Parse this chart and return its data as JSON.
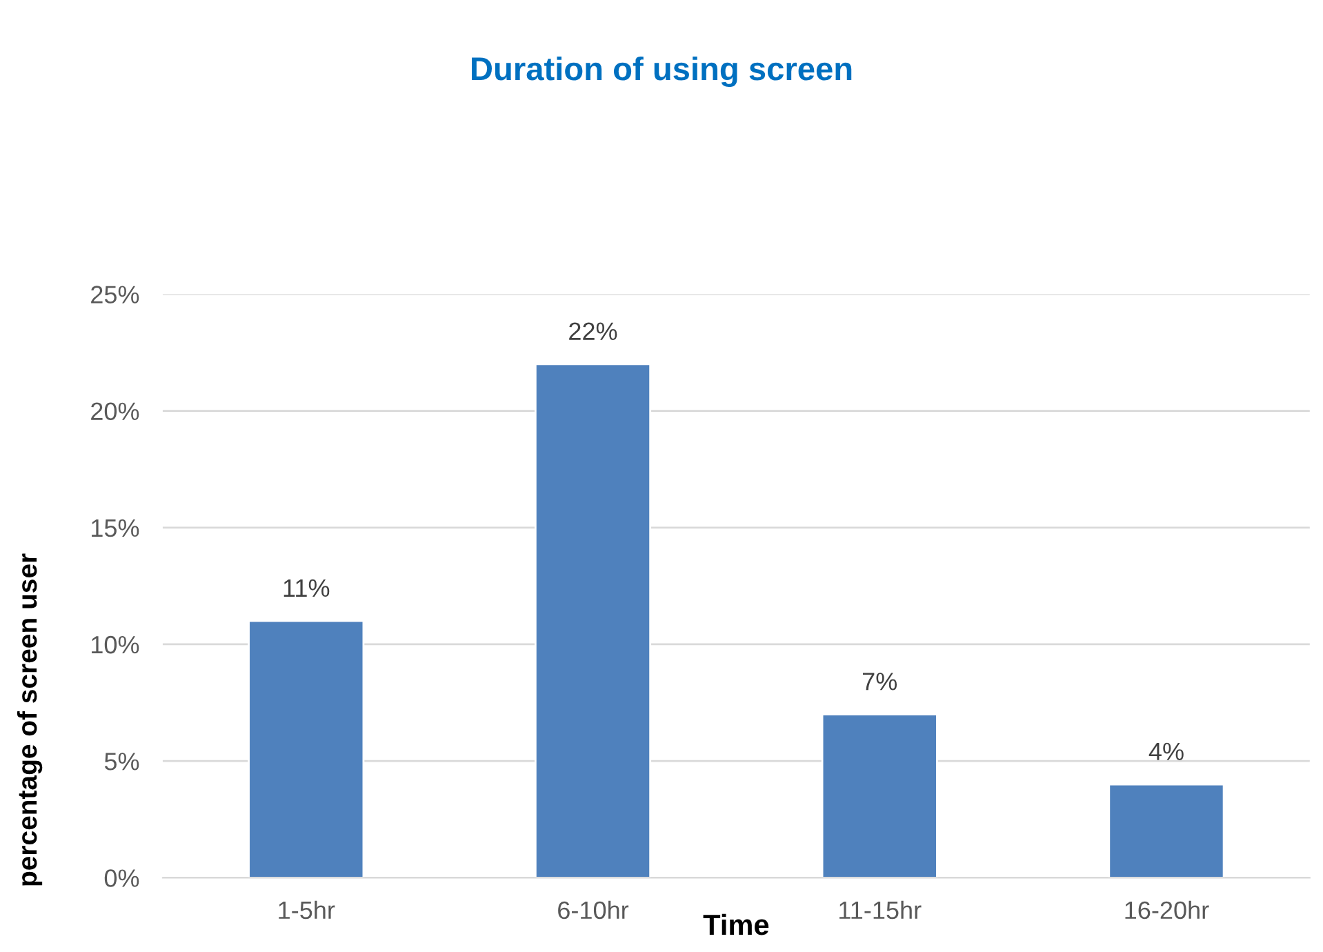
{
  "chart_data": {
    "type": "bar",
    "title": "Duration of using screen",
    "xlabel": "Time",
    "ylabel": "percentage of screen user",
    "categories": [
      "1-5hr",
      "6-10hr",
      "11-15hr",
      "16-20hr"
    ],
    "series": [
      {
        "color": "#4f81bd",
        "values": [
          11,
          22,
          7,
          4
        ]
      }
    ],
    "value_labels": [
      "11%",
      "22%",
      "7%",
      "4%"
    ],
    "ylim": [
      0,
      25
    ],
    "yticks": [
      {
        "value": 0,
        "label": "0%"
      },
      {
        "value": 5,
        "label": "5%"
      },
      {
        "value": 10,
        "label": "10%"
      },
      {
        "value": 15,
        "label": "15%"
      },
      {
        "value": 20,
        "label": "20%"
      },
      {
        "value": 25,
        "label": "25%"
      }
    ],
    "grid": "y",
    "legend": false
  }
}
